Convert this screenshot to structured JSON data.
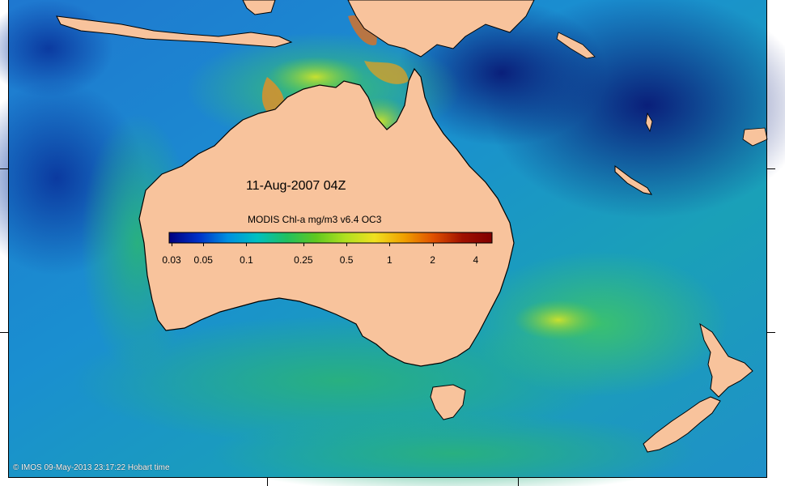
{
  "map": {
    "title": "11-Aug-2007 04Z",
    "credit": "© IMOS 09-May-2013 23:17:22 Hobart time",
    "colors": {
      "land": "#f8c39c",
      "coast": "#000000",
      "deep_ocean": "#0a2a8c",
      "open_ocean": "#1e7fd0",
      "shelf": "#2fb08a",
      "bloom": "#8fd23a",
      "high": "#e8a020"
    }
  },
  "colorbar": {
    "label": "MODIS Chl-a mg/m3 v6.4 OC3",
    "ticks": [
      {
        "label": "0.03",
        "value": 0.03
      },
      {
        "label": "0.05",
        "value": 0.05
      },
      {
        "label": "0.1",
        "value": 0.1
      },
      {
        "label": "0.25",
        "value": 0.25
      },
      {
        "label": "0.5",
        "value": 0.5
      },
      {
        "label": "1",
        "value": 1
      },
      {
        "label": "2",
        "value": 2
      },
      {
        "label": "4",
        "value": 4
      }
    ],
    "range": [
      0.03,
      5
    ],
    "stops": [
      "#00007f",
      "#0030c8",
      "#0090e0",
      "#00c0c0",
      "#20c060",
      "#60c820",
      "#b0e020",
      "#f0e020",
      "#f0a000",
      "#e05000",
      "#a01000",
      "#800000"
    ]
  }
}
